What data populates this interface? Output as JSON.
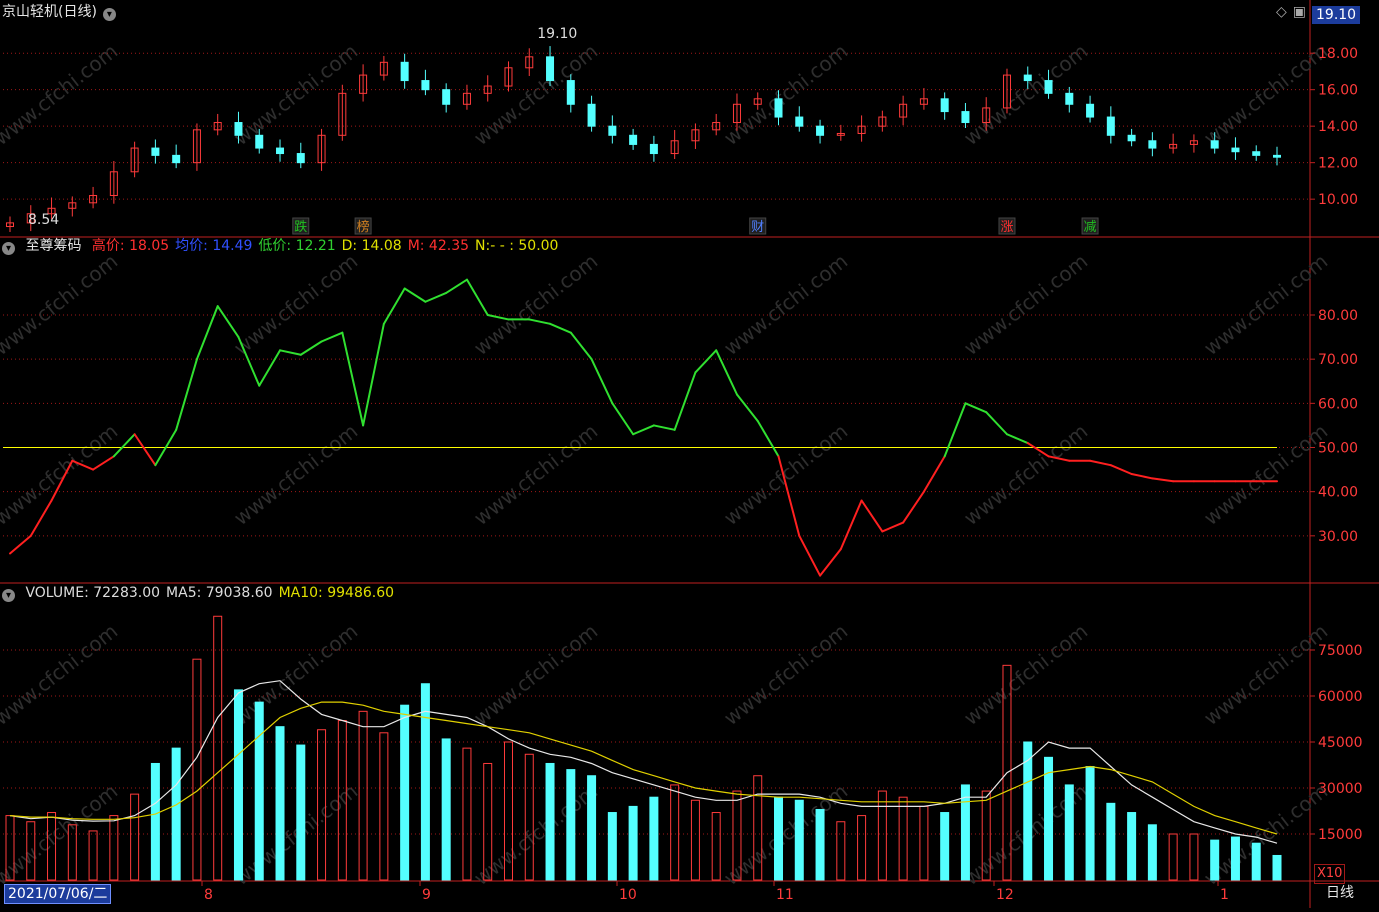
{
  "title": "京山轻机(日线)",
  "price_badge": "19.10",
  "price_panel": {
    "high_label": "19.10",
    "low_label": "8.54",
    "yticks": [
      "18.00",
      "16.00",
      "14.00",
      "12.00",
      "10.00"
    ],
    "ylim": [
      8.2,
      19.6
    ],
    "events": [
      {
        "label": "跌",
        "index": 14,
        "color": "#20c020"
      },
      {
        "label": "榜",
        "index": 17,
        "color": "#d08020"
      },
      {
        "label": "财",
        "index": 36,
        "color": "#5080ff"
      },
      {
        "label": "涨",
        "index": 48,
        "color": "#ff3030"
      },
      {
        "label": "减",
        "index": 52,
        "color": "#20c020"
      }
    ]
  },
  "indicator": {
    "name": "至尊筹码",
    "items": [
      {
        "label": "高价:",
        "value": "18.05",
        "color": "#ff3030"
      },
      {
        "label": "均价:",
        "value": "14.49",
        "color": "#3050ff"
      },
      {
        "label": "低价:",
        "value": "12.21",
        "color": "#30d030"
      },
      {
        "label": "D:",
        "value": "14.08",
        "color": "#e0e000"
      },
      {
        "label": "M:",
        "value": "42.35",
        "color": "#ff3030"
      },
      {
        "label": "N:-  -  :",
        "value": "50.00",
        "color": "#e0e000"
      }
    ],
    "yticks": [
      "80.00",
      "70.00",
      "60.00",
      "50.00",
      "40.00",
      "30.00"
    ],
    "ylim": [
      20,
      92
    ],
    "threshold": 50
  },
  "volume": {
    "items": [
      {
        "label": "VOLUME:",
        "value": "72283.00",
        "color": "#dddddd"
      },
      {
        "label": "MA5:",
        "value": "79038.60",
        "color": "#dddddd"
      },
      {
        "label": "MA10:",
        "value": "99486.60",
        "color": "#e0e000"
      }
    ],
    "yticks": [
      "75000",
      "60000",
      "45000",
      "30000",
      "15000"
    ],
    "ylim": [
      0,
      90000
    ],
    "scale_label": "X10"
  },
  "x_axis": {
    "date_label": "2021/07/06/二",
    "months": [
      {
        "label": "8",
        "x": 202
      },
      {
        "label": "9",
        "x": 420
      },
      {
        "label": "10",
        "x": 617
      },
      {
        "label": "11",
        "x": 774
      },
      {
        "label": "12",
        "x": 994
      },
      {
        "label": "1",
        "x": 1218
      }
    ],
    "period_label": "日线"
  },
  "watermark": "www.cfchi.com",
  "colors": {
    "up": "#ff3b3b",
    "down": "#54ffff",
    "grid": "#a01818",
    "ma5": "#e8e8e8",
    "ma10": "#e0d000",
    "line_up": "#30e030",
    "line_down": "#ff2020",
    "threshold": "#ffff00"
  },
  "chart_data": [
    {
      "type": "candlestick",
      "title": "京山轻机(日线)",
      "x": [
        "2021-07-06",
        "2021-07-09",
        "2021-07-12",
        "2021-07-15",
        "2021-07-18",
        "2021-07-21",
        "2021-07-24",
        "2021-07-27",
        "2021-07-30",
        "2021-08-02",
        "2021-08-05",
        "2021-08-08",
        "2021-08-11",
        "2021-08-14",
        "2021-08-17",
        "2021-08-20",
        "2021-08-23",
        "2021-08-26",
        "2021-08-29",
        "2021-09-01",
        "2021-09-04",
        "2021-09-07",
        "2021-09-10",
        "2021-09-13",
        "2021-09-16",
        "2021-09-19",
        "2021-09-22",
        "2021-09-25",
        "2021-09-28",
        "2021-10-01",
        "2021-10-04",
        "2021-10-07",
        "2021-10-10",
        "2021-10-13",
        "2021-10-16",
        "2021-10-19",
        "2021-10-22",
        "2021-10-25",
        "2021-10-28",
        "2021-11-01",
        "2021-11-04",
        "2021-11-07",
        "2021-11-10",
        "2021-11-13",
        "2021-11-16",
        "2021-11-19",
        "2021-11-22",
        "2021-11-25",
        "2021-11-28",
        "2021-12-01",
        "2021-12-04",
        "2021-12-07",
        "2021-12-10",
        "2021-12-13",
        "2021-12-16",
        "2021-12-19",
        "2021-12-22",
        "2021-12-25",
        "2021-12-28",
        "2022-01-01",
        "2022-01-04",
        "2022-01-07"
      ],
      "close": [
        8.7,
        9.2,
        9.5,
        9.8,
        10.2,
        11.5,
        12.8,
        12.4,
        12.0,
        13.8,
        14.2,
        13.5,
        12.8,
        12.5,
        12.0,
        13.5,
        15.8,
        16.8,
        17.5,
        16.5,
        16.0,
        15.2,
        15.8,
        16.2,
        17.2,
        17.8,
        16.5,
        15.2,
        14.0,
        13.5,
        13.0,
        12.5,
        13.2,
        13.8,
        14.2,
        15.2,
        15.5,
        14.5,
        14.0,
        13.5,
        13.6,
        14.0,
        14.5,
        15.2,
        15.5,
        14.8,
        14.2,
        15.0,
        16.8,
        16.5,
        15.8,
        15.2,
        14.5,
        13.5,
        13.2,
        12.8,
        13.0,
        13.2,
        12.8,
        12.6,
        12.4,
        12.3
      ],
      "ylim": [
        8.2,
        19.6
      ],
      "annotations": [
        "19.10",
        "8.54"
      ]
    },
    {
      "type": "line",
      "title": "至尊筹码",
      "ylim": [
        20,
        92
      ],
      "threshold": 50,
      "x": [
        0,
        1,
        2,
        3,
        4,
        5,
        6,
        7,
        8,
        9,
        10,
        11,
        12,
        13,
        14,
        15,
        16,
        17,
        18,
        19,
        20,
        21,
        22,
        23,
        24,
        25,
        26,
        27,
        28,
        29,
        30,
        31,
        32,
        33,
        34,
        35,
        36,
        37,
        38,
        39,
        40,
        41,
        42,
        43,
        44,
        45,
        46,
        47,
        48,
        49,
        50,
        51,
        52,
        53,
        54,
        55,
        56,
        57,
        58,
        59,
        60,
        61
      ],
      "values": [
        26,
        30,
        38,
        47,
        45,
        48,
        53,
        46,
        54,
        70,
        82,
        75,
        64,
        72,
        71,
        74,
        76,
        55,
        78,
        86,
        83,
        85,
        88,
        80,
        79,
        79,
        78,
        76,
        70,
        60,
        53,
        55,
        54,
        67,
        72,
        62,
        56,
        48,
        30,
        21,
        27,
        38,
        31,
        33,
        40,
        48,
        60,
        58,
        53,
        51,
        48,
        47,
        47,
        46,
        44,
        43,
        42.35,
        42.35,
        42.35,
        42.35,
        42.35,
        42.35
      ]
    },
    {
      "type": "bar",
      "title": "VOLUME",
      "ylim": [
        0,
        90000
      ],
      "series": [
        {
          "name": "VOLUME",
          "values": [
            21000,
            19000,
            22000,
            18000,
            16000,
            21000,
            28000,
            38000,
            43000,
            72000,
            86000,
            62000,
            58000,
            50000,
            44000,
            49000,
            52000,
            55000,
            48000,
            57000,
            64000,
            46000,
            43000,
            38000,
            45000,
            41000,
            38000,
            36000,
            34000,
            22000,
            24000,
            27000,
            31000,
            26000,
            22000,
            29000,
            34000,
            27000,
            26000,
            23000,
            19000,
            21000,
            29000,
            27000,
            24000,
            22000,
            31000,
            29000,
            70000,
            45000,
            40000,
            31000,
            37000,
            25000,
            22000,
            18000,
            15000,
            15000,
            13000,
            14000,
            12000,
            8000
          ]
        },
        {
          "name": "MA5",
          "values": [
            21000,
            20000,
            20500,
            19500,
            19200,
            19300,
            21000,
            25000,
            31000,
            40000,
            53000,
            61000,
            64000,
            65000,
            59000,
            54000,
            52000,
            50000,
            50000,
            53000,
            55000,
            54000,
            53000,
            50000,
            46000,
            43000,
            41000,
            40000,
            38000,
            35000,
            33000,
            31000,
            29000,
            27000,
            26000,
            26000,
            28000,
            28000,
            28000,
            27000,
            25000,
            24000,
            24000,
            24000,
            24000,
            25000,
            27000,
            27000,
            35000,
            39000,
            45000,
            43000,
            43000,
            37000,
            31000,
            27000,
            23000,
            19000,
            17000,
            15000,
            14000,
            12000
          ]
        },
        {
          "name": "MA10",
          "values": [
            21000,
            20500,
            20500,
            20000,
            19800,
            19800,
            20300,
            21500,
            24500,
            29000,
            35000,
            41000,
            47000,
            53000,
            56000,
            58000,
            58000,
            57000,
            55000,
            54000,
            53000,
            52000,
            51000,
            50000,
            49000,
            48000,
            46000,
            44000,
            42000,
            39000,
            36000,
            34000,
            32000,
            30000,
            29000,
            28000,
            27500,
            27000,
            27000,
            26500,
            26000,
            25500,
            25500,
            25500,
            25500,
            25000,
            25500,
            26000,
            29000,
            32000,
            35000,
            36000,
            37000,
            36000,
            34000,
            32000,
            28000,
            24000,
            21000,
            19000,
            17000,
            15000
          ]
        }
      ]
    }
  ]
}
